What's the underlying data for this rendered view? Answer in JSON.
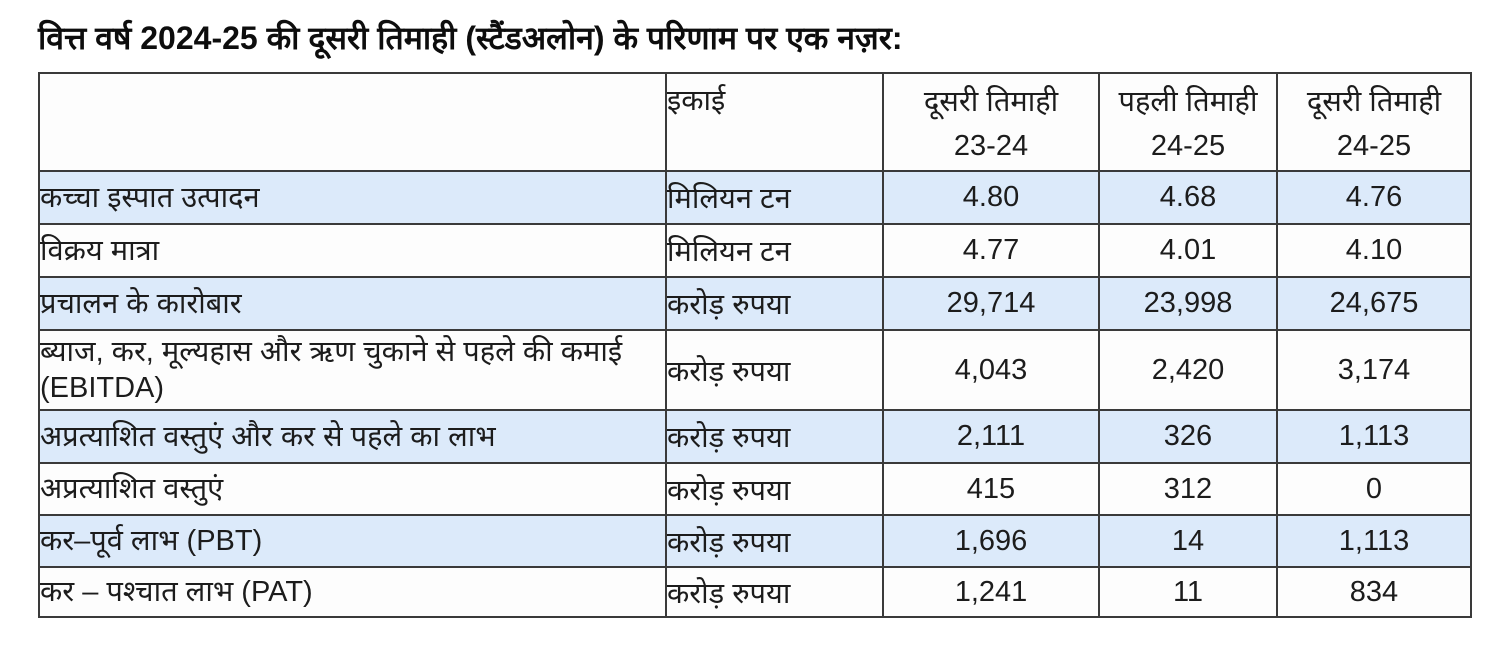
{
  "title": "वित्त वर्ष 2024-25 की दूसरी तिमाही (स्टैंडअलोन) के परिणाम पर एक नज़र:",
  "colors": {
    "row_highlight": "#dceafa",
    "border": "#3a3a3a",
    "text": "#1c1c1c"
  },
  "table": {
    "header": {
      "metric": "",
      "unit": "इकाई",
      "cols": [
        {
          "title": "दूसरी तिमाही",
          "period": "23-24"
        },
        {
          "title": "पहली तिमाही",
          "period": "24-25"
        },
        {
          "title": "दूसरी तिमाही",
          "period": "24-25"
        }
      ]
    },
    "rows": [
      {
        "label": "कच्चा इस्पात उत्पादन",
        "unit": "मिलियन टन",
        "values": [
          "4.80",
          "4.68",
          "4.76"
        ]
      },
      {
        "label": "विक्रय मात्रा",
        "unit": "मिलियन टन",
        "values": [
          "4.77",
          "4.01",
          "4.10"
        ]
      },
      {
        "label": "प्रचालन के कारोबार",
        "unit": "करोड़ रुपया",
        "values": [
          "29,714",
          "23,998",
          "24,675"
        ]
      },
      {
        "label": "ब्याज, कर, मूल्यहास और ऋण चुकाने से पहले की कमाई (EBITDA)",
        "unit": "करोड़ रुपया",
        "values": [
          "4,043",
          "2,420",
          "3,174"
        ]
      },
      {
        "label": "अप्रत्याशित वस्तुएं और कर से पहले का लाभ",
        "unit": "करोड़ रुपया",
        "values": [
          "2,111",
          "326",
          "1,113"
        ]
      },
      {
        "label": "अप्रत्याशित वस्तुएं",
        "unit": "करोड़ रुपया",
        "values": [
          "415",
          "312",
          "0"
        ]
      },
      {
        "label": "कर–पूर्व लाभ (PBT)",
        "unit": "करोड़ रुपया",
        "values": [
          "1,696",
          "14",
          "1,113"
        ]
      },
      {
        "label": "कर – पश्चात लाभ (PAT)",
        "unit": "करोड़ रुपया",
        "values": [
          "1,241",
          "11",
          "834"
        ]
      }
    ]
  },
  "chart_data": {
    "type": "table",
    "title": "वित्त वर्ष 2024-25 की दूसरी तिमाही (स्टैंडअलोन) के परिणाम पर एक नज़र:",
    "columns": [
      "",
      "इकाई",
      "दूसरी तिमाही 23-24",
      "पहली तिमाही 24-25",
      "दूसरी तिमाही 24-25"
    ],
    "rows": [
      [
        "कच्चा इस्पात उत्पादन",
        "मिलियन टन",
        4.8,
        4.68,
        4.76
      ],
      [
        "विक्रय मात्रा",
        "मिलियन टन",
        4.77,
        4.01,
        4.1
      ],
      [
        "प्रचालन के कारोबार",
        "करोड़ रुपया",
        29714,
        23998,
        24675
      ],
      [
        "ब्याज, कर, मूल्यहास और ऋण चुकाने से पहले की कमाई (EBITDA)",
        "करोड़ रुपया",
        4043,
        2420,
        3174
      ],
      [
        "अप्रत्याशित वस्तुएं और कर से पहले का लाभ",
        "करोड़ रुपया",
        2111,
        326,
        1113
      ],
      [
        "अप्रत्याशित वस्तुएं",
        "करोड़ रुपया",
        415,
        312,
        0
      ],
      [
        "कर–पूर्व लाभ (PBT)",
        "करोड़ रुपया",
        1696,
        14,
        1113
      ],
      [
        "कर – पश्चात लाभ (PAT)",
        "करोड़ रुपया",
        1241,
        11,
        834
      ]
    ]
  }
}
